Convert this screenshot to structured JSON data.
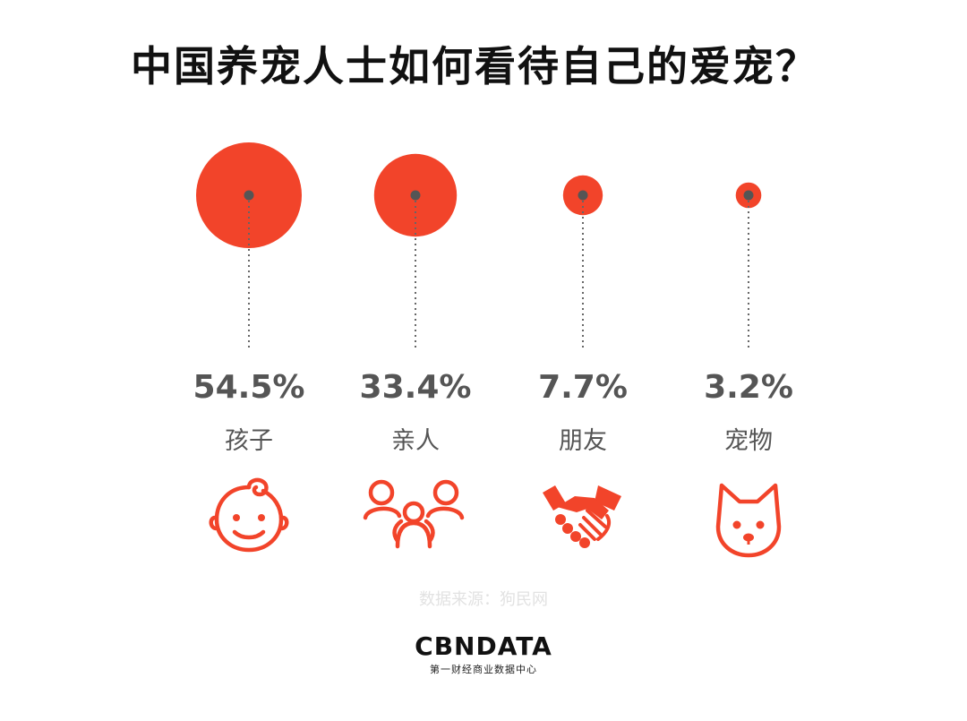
{
  "title": "中国养宠人士如何看待自己的爱宠？",
  "chart_data": {
    "type": "bubble",
    "title": "中国养宠人士如何看待自己的爱宠？",
    "categories": [
      "孩子",
      "亲人",
      "朋友",
      "宠物"
    ],
    "values": [
      54.5,
      33.4,
      7.7,
      3.2
    ],
    "value_labels": [
      "54.5%",
      "33.4%",
      "7.7%",
      "3.2%"
    ],
    "icons": [
      "baby-face-icon",
      "family-icon",
      "handshake-icon",
      "dog-face-icon"
    ]
  },
  "colors": {
    "accent": "#f2442a",
    "text": "#555555",
    "dot": "#555555",
    "source": "#e2e2e2"
  },
  "source": "数据来源：狗民网",
  "logo": {
    "main": "CBNDATA",
    "sub": "第一财经商业数据中心"
  }
}
